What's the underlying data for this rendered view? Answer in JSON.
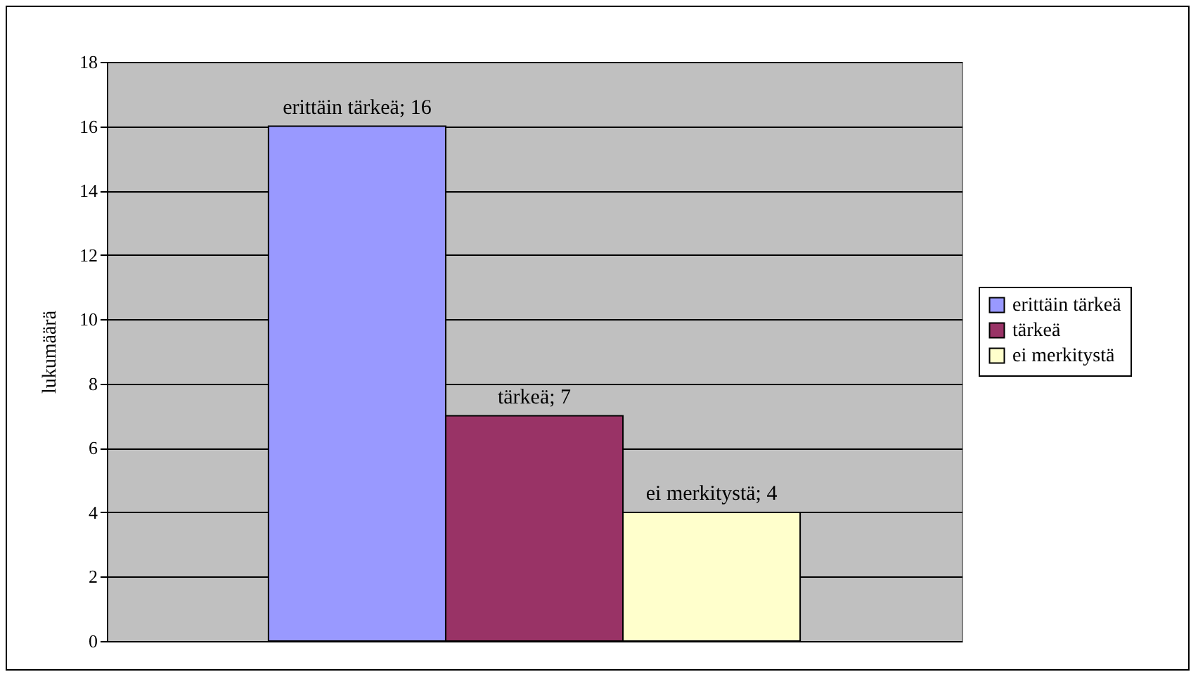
{
  "chart_data": {
    "type": "bar",
    "ylabel": "lukumäärä",
    "categories": [
      null
    ],
    "series": [
      {
        "name": "erittäin tärkeä",
        "color": "#9999ff",
        "values": [
          16
        ],
        "value_labels": [
          "erittäin tärkeä; 16"
        ]
      },
      {
        "name": "tärkeä",
        "color": "#993366",
        "values": [
          7
        ],
        "value_labels": [
          "tärkeä; 7"
        ]
      },
      {
        "name": "ei merkitystä",
        "color": "#ffffcc",
        "values": [
          4
        ],
        "value_labels": [
          "ei merkitystä; 4"
        ]
      }
    ],
    "ylim": [
      0,
      18
    ],
    "yticks": [
      0,
      2,
      4,
      6,
      8,
      10,
      12,
      14,
      16,
      18
    ],
    "grid": "y",
    "legend": "right",
    "tick_labels": "y"
  }
}
